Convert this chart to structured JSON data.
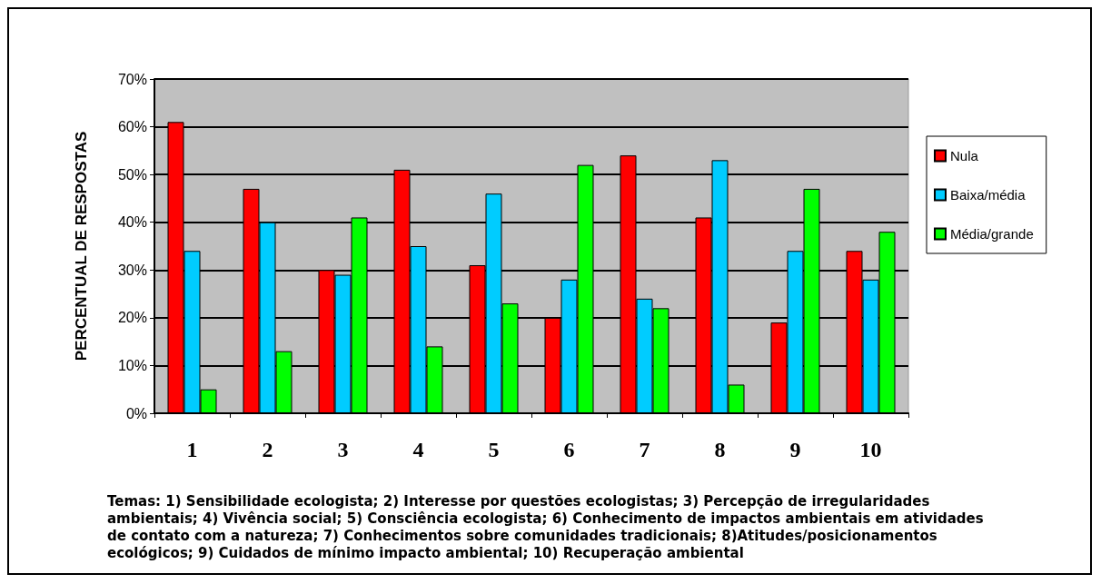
{
  "chart_data": {
    "type": "bar",
    "ylabel": "PERCENTUAL DE RESPOSTAS",
    "categories": [
      "1",
      "2",
      "3",
      "4",
      "5",
      "6",
      "7",
      "8",
      "9",
      "10"
    ],
    "series": [
      {
        "name": "Nula",
        "color": "#ff0000",
        "values": [
          61,
          47,
          30,
          51,
          31,
          20,
          54,
          41,
          19,
          34
        ]
      },
      {
        "name": "Baixa/média",
        "color": "#00ccff",
        "values": [
          34,
          40,
          29,
          35,
          46,
          28,
          24,
          53,
          34,
          28
        ]
      },
      {
        "name": "Média/grande",
        "color": "#00ff00",
        "values": [
          5,
          13,
          41,
          14,
          23,
          52,
          22,
          6,
          47,
          38
        ]
      }
    ],
    "ylim": [
      0,
      70
    ],
    "yticks": [
      {
        "value": 0,
        "label": "0%"
      },
      {
        "value": 10,
        "label": "10%"
      },
      {
        "value": 20,
        "label": "20%"
      },
      {
        "value": 30,
        "label": "30%"
      },
      {
        "value": 40,
        "label": "40%"
      },
      {
        "value": 50,
        "label": "50%"
      },
      {
        "value": 60,
        "label": "60%"
      },
      {
        "value": 70,
        "label": "70%"
      }
    ],
    "grid": "y",
    "legend": "right",
    "annotations": [
      "Temas: 1) Sensibilidade ecologista; 2) Interesse por questões ecologistas; 3) Percepção de irregularidades ambientais; 4) Vivência social; 5) Consciência ecologista; 6) Conhecimento de impactos ambientais em atividades de contato com a natureza; 7) Conhecimentos sobre comunidades tradicionais; 8)Atitudes/posicionamentos ecológicos; 9) Cuidados de mínimo impacto   ambiental; 10) Recuperação ambiental"
    ]
  }
}
